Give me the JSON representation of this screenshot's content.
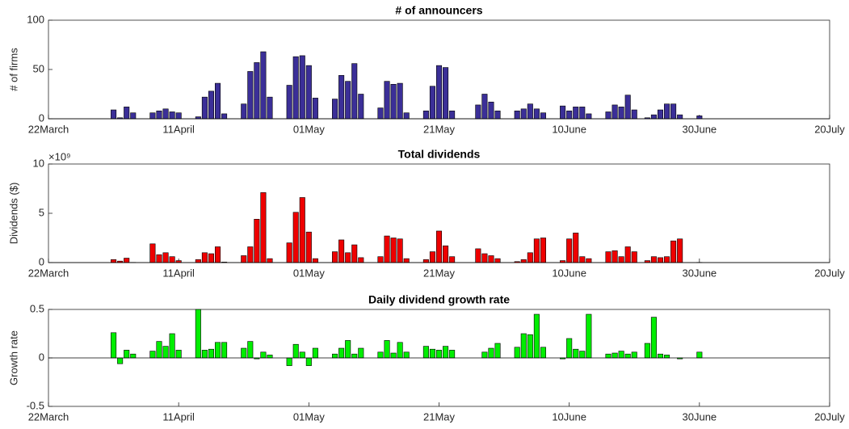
{
  "chart_data": [
    {
      "type": "bar",
      "title": "# of announcers",
      "ylabel": "# of firms",
      "color": "#3b2f98",
      "x": [
        "01April",
        "02April",
        "03April",
        "04April",
        "07April",
        "08April",
        "09April",
        "10April",
        "11April",
        "14April",
        "15April",
        "16April",
        "17April",
        "18April",
        "21April",
        "22April",
        "23April",
        "24April",
        "25April",
        "28April",
        "29April",
        "30April",
        "01May",
        "02May",
        "05May",
        "06May",
        "07May",
        "08May",
        "09May",
        "12May",
        "13May",
        "14May",
        "15May",
        "16May",
        "19May",
        "20May",
        "21May",
        "22May",
        "23May",
        "27May",
        "28May",
        "29May",
        "30May",
        "02June",
        "03June",
        "04June",
        "05June",
        "06June",
        "09June",
        "10June",
        "11June",
        "12June",
        "13June",
        "16June",
        "17June",
        "18June",
        "19June",
        "20June",
        "22June",
        "23June",
        "24June",
        "25June",
        "26June",
        "27June",
        "30June"
      ],
      "values": [
        9,
        1,
        12,
        6,
        6,
        8,
        10,
        7,
        6,
        2,
        22,
        28,
        36,
        5,
        15,
        48,
        57,
        68,
        22,
        34,
        63,
        64,
        54,
        21,
        20,
        44,
        38,
        56,
        25,
        11,
        38,
        35,
        36,
        6,
        8,
        33,
        54,
        52,
        8,
        14,
        25,
        17,
        8,
        8,
        10,
        15,
        10,
        6,
        13,
        8,
        12,
        12,
        5,
        7,
        14,
        12,
        24,
        9,
        1,
        4,
        9,
        15,
        15,
        4,
        3
      ],
      "xlim": [
        "22March",
        "20July"
      ],
      "xticks": [
        "22March",
        "11April",
        "01May",
        "21May",
        "10June",
        "30June",
        "20July"
      ],
      "ylim": [
        0,
        100
      ],
      "yticks": [
        0,
        50,
        100
      ]
    },
    {
      "type": "bar",
      "title": "Total dividends",
      "ylabel": "Dividends ($)",
      "y_exponent_label": "×10⁹",
      "color": "#ee0000",
      "x": [
        "01April",
        "02April",
        "03April",
        "04April",
        "07April",
        "08April",
        "09April",
        "10April",
        "11April",
        "14April",
        "15April",
        "16April",
        "17April",
        "18April",
        "21April",
        "22April",
        "23April",
        "24April",
        "25April",
        "28April",
        "29April",
        "30April",
        "01May",
        "02May",
        "05May",
        "06May",
        "07May",
        "08May",
        "09May",
        "12May",
        "13May",
        "14May",
        "15May",
        "16May",
        "19May",
        "20May",
        "21May",
        "22May",
        "23May",
        "27May",
        "28May",
        "29May",
        "30May",
        "02June",
        "03June",
        "04June",
        "05June",
        "06June",
        "09June",
        "10June",
        "11June",
        "12June",
        "13June",
        "16June",
        "17June",
        "18June",
        "19June",
        "20June",
        "22June",
        "23June",
        "24June",
        "25June",
        "26June",
        "27June",
        "30June"
      ],
      "values": [
        0.3,
        0.15,
        0.45,
        0.02,
        1.9,
        0.8,
        1.0,
        0.6,
        0.2,
        0.3,
        1.0,
        0.9,
        1.6,
        0.05,
        0.7,
        1.6,
        4.4,
        7.1,
        0.4,
        2.0,
        5.1,
        6.6,
        3.1,
        0.4,
        1.1,
        2.3,
        1.0,
        1.8,
        0.5,
        0.6,
        2.7,
        2.5,
        2.4,
        0.4,
        0.3,
        1.1,
        3.2,
        1.7,
        0.6,
        1.4,
        0.9,
        0.7,
        0.4,
        0.1,
        0.3,
        1.0,
        2.4,
        2.5,
        0.2,
        2.4,
        3.0,
        0.6,
        0.4,
        1.1,
        1.2,
        0.6,
        1.6,
        1.1,
        0.2,
        0.6,
        0.5,
        0.6,
        2.2,
        2.4,
        0.02
      ],
      "xlim": [
        "22March",
        "20July"
      ],
      "xticks": [
        "22March",
        "11April",
        "01May",
        "21May",
        "10June",
        "30June",
        "20July"
      ],
      "ylim": [
        0,
        10
      ],
      "yticks": [
        0,
        5,
        10
      ]
    },
    {
      "type": "bar",
      "title": "Daily dividend growth rate",
      "ylabel": "Growth rate",
      "color": "#00ee00",
      "x": [
        "01April",
        "02April",
        "03April",
        "04April",
        "07April",
        "08April",
        "09April",
        "10April",
        "11April",
        "14April",
        "15April",
        "16April",
        "17April",
        "18April",
        "21April",
        "22April",
        "23April",
        "24April",
        "25April",
        "28April",
        "29April",
        "30April",
        "01May",
        "02May",
        "05May",
        "06May",
        "07May",
        "08May",
        "09May",
        "12May",
        "13May",
        "14May",
        "15May",
        "16May",
        "19May",
        "20May",
        "21May",
        "22May",
        "23May",
        "27May",
        "28May",
        "29May",
        "30May",
        "02June",
        "03June",
        "04June",
        "05June",
        "06June",
        "09June",
        "10June",
        "11June",
        "12June",
        "13June",
        "16June",
        "17June",
        "18June",
        "19June",
        "20June",
        "22June",
        "23June",
        "24June",
        "25June",
        "26June",
        "27June",
        "30June"
      ],
      "values": [
        0.26,
        -0.06,
        0.08,
        0.04,
        0.07,
        0.17,
        0.12,
        0.25,
        0.08,
        0.5,
        0.08,
        0.09,
        0.16,
        0.16,
        0.1,
        0.17,
        -0.01,
        0.06,
        0.03,
        -0.08,
        0.14,
        0.06,
        -0.08,
        0.1,
        0.04,
        0.1,
        0.18,
        0.04,
        0.1,
        0.06,
        0.18,
        0.05,
        0.16,
        0.06,
        0.12,
        0.09,
        0.08,
        0.12,
        0.08,
        0,
        0.06,
        0.1,
        0.15,
        0.11,
        0.25,
        0.24,
        0.45,
        0.11,
        -0.01,
        0.2,
        0.09,
        0.07,
        0.45,
        0.04,
        0.05,
        0.07,
        0.04,
        0.06,
        0.15,
        0.42,
        0.04,
        0.03,
        0,
        -0.01,
        0.06
      ],
      "xlim": [
        "22March",
        "20July"
      ],
      "xticks": [
        "22March",
        "11April",
        "01May",
        "21May",
        "10June",
        "30June",
        "20July"
      ],
      "ylim": [
        -0.5,
        0.5
      ],
      "yticks": [
        -0.5,
        0,
        0.5
      ]
    }
  ]
}
